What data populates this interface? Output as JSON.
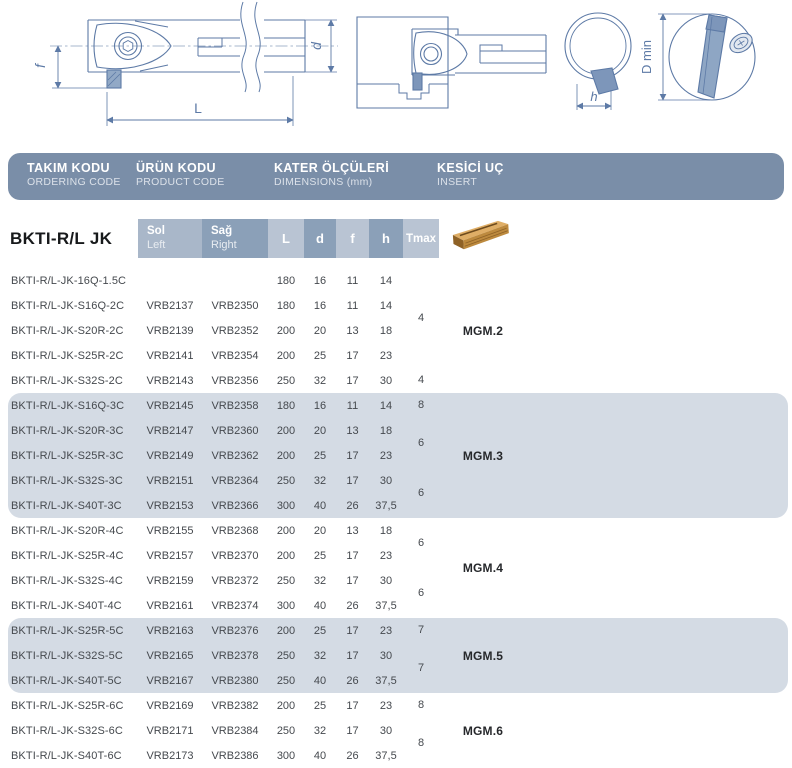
{
  "colors": {
    "header_bar": "#7a8ea8",
    "cell_light": "#b9c4d3",
    "cell_dark": "#8ba0b8",
    "group_band": "#d4dbe4",
    "drawing_line": "#5d7aa6",
    "insert_fill": "#7d96ba",
    "insert_gold_top": "#dfae66",
    "insert_gold_side": "#bd8a3e",
    "insert_gold_end": "#8f6226",
    "insert_gold_slot": "#6e4b1d"
  },
  "drawing": {
    "labels": {
      "f": "f",
      "d": "d",
      "L": "L",
      "h": "h",
      "dmin": "D min"
    }
  },
  "header": {
    "columns": [
      {
        "title": "TAKIM KODU",
        "subtitle": "ORDERING CODE"
      },
      {
        "title": "ÜRÜN KODU",
        "subtitle": "PRODUCT CODE"
      },
      {
        "title": "KATER ÖLÇÜLERİ",
        "subtitle": "DIMENSIONS (mm)"
      },
      {
        "title": "KESİCİ UÇ",
        "subtitle": "INSERT"
      }
    ]
  },
  "subheader": {
    "series_title": "BKTI-R/L JK",
    "sol_title": "Sol",
    "sol_sub": "Left",
    "sag_title": "Sağ",
    "sag_sub": "Right",
    "dims": [
      "L",
      "d",
      "f",
      "h",
      "Tmax"
    ]
  },
  "table": {
    "groups": [
      {
        "shaded": false,
        "insert": "MGM.2",
        "rows": [
          [
            "BKTI-R/L-JK-16Q-1.5C",
            "",
            "",
            "180",
            "16",
            "11",
            "14"
          ],
          [
            "BKTI-R/L-JK-S16Q-2C",
            "VRB2137",
            "VRB2350",
            "180",
            "16",
            "11",
            "14"
          ],
          [
            "BKTI-R/L-JK-S20R-2C",
            "VRB2139",
            "VRB2352",
            "200",
            "20",
            "13",
            "18"
          ],
          [
            "BKTI-R/L-JK-S25R-2C",
            "VRB2141",
            "VRB2354",
            "200",
            "25",
            "17",
            "23"
          ],
          [
            "BKTI-R/L-JK-S32S-2C",
            "VRB2143",
            "VRB2356",
            "250",
            "32",
            "17",
            "30"
          ]
        ],
        "tmax": [
          {
            "value": "4",
            "from": 1,
            "to": 2
          },
          {
            "value": "4",
            "from": 4,
            "to": 4
          }
        ]
      },
      {
        "shaded": true,
        "insert": "MGM.3",
        "rows": [
          [
            "BKTI-R/L-JK-S16Q-3C",
            "VRB2145",
            "VRB2358",
            "180",
            "16",
            "11",
            "14"
          ],
          [
            "BKTI-R/L-JK-S20R-3C",
            "VRB2147",
            "VRB2360",
            "200",
            "20",
            "13",
            "18"
          ],
          [
            "BKTI-R/L-JK-S25R-3C",
            "VRB2149",
            "VRB2362",
            "200",
            "25",
            "17",
            "23"
          ],
          [
            "BKTI-R/L-JK-S32S-3C",
            "VRB2151",
            "VRB2364",
            "250",
            "32",
            "17",
            "30"
          ],
          [
            "BKTI-R/L-JK-S40T-3C",
            "VRB2153",
            "VRB2366",
            "300",
            "40",
            "26",
            "37,5"
          ]
        ],
        "tmax": [
          {
            "value": "8",
            "from": 0,
            "to": 0
          },
          {
            "value": "6",
            "from": 1,
            "to": 2
          },
          {
            "value": "6",
            "from": 3,
            "to": 4
          }
        ]
      },
      {
        "shaded": false,
        "insert": "MGM.4",
        "rows": [
          [
            "BKTI-R/L-JK-S20R-4C",
            "VRB2155",
            "VRB2368",
            "200",
            "20",
            "13",
            "18"
          ],
          [
            "BKTI-R/L-JK-S25R-4C",
            "VRB2157",
            "VRB2370",
            "200",
            "25",
            "17",
            "23"
          ],
          [
            "BKTI-R/L-JK-S32S-4C",
            "VRB2159",
            "VRB2372",
            "250",
            "32",
            "17",
            "30"
          ],
          [
            "BKTI-R/L-JK-S40T-4C",
            "VRB2161",
            "VRB2374",
            "300",
            "40",
            "26",
            "37,5"
          ]
        ],
        "tmax": [
          {
            "value": "6",
            "from": 0,
            "to": 1
          },
          {
            "value": "6",
            "from": 2,
            "to": 3
          }
        ]
      },
      {
        "shaded": true,
        "insert": "MGM.5",
        "rows": [
          [
            "BKTI-R/L-JK-S25R-5C",
            "VRB2163",
            "VRB2376",
            "200",
            "25",
            "17",
            "23"
          ],
          [
            "BKTI-R/L-JK-S32S-5C",
            "VRB2165",
            "VRB2378",
            "250",
            "32",
            "17",
            "30"
          ],
          [
            "BKTI-R/L-JK-S40T-5C",
            "VRB2167",
            "VRB2380",
            "250",
            "40",
            "26",
            "37,5"
          ]
        ],
        "tmax": [
          {
            "value": "7",
            "from": 0,
            "to": 0
          },
          {
            "value": "7",
            "from": 1,
            "to": 2
          }
        ]
      },
      {
        "shaded": false,
        "insert": "MGM.6",
        "rows": [
          [
            "BKTI-R/L-JK-S25R-6C",
            "VRB2169",
            "VRB2382",
            "200",
            "25",
            "17",
            "23"
          ],
          [
            "BKTI-R/L-JK-S32S-6C",
            "VRB2171",
            "VRB2384",
            "250",
            "32",
            "17",
            "30"
          ],
          [
            "BKTI-R/L-JK-S40T-6C",
            "VRB2173",
            "VRB2386",
            "300",
            "40",
            "26",
            "37,5"
          ]
        ],
        "tmax": [
          {
            "value": "8",
            "from": 0,
            "to": 0
          },
          {
            "value": "8",
            "from": 1,
            "to": 2
          }
        ]
      }
    ]
  }
}
